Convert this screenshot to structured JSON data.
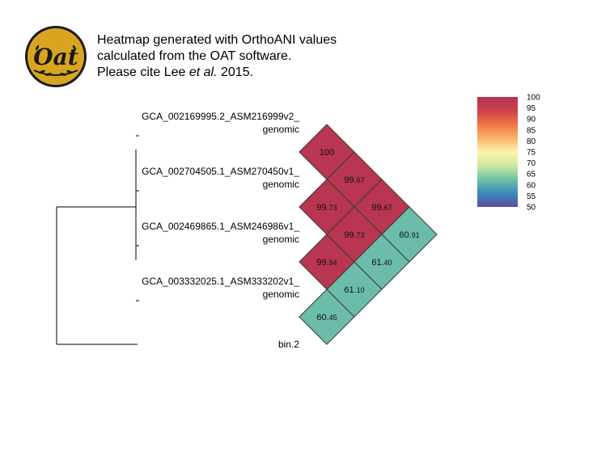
{
  "logo": {
    "text": "Oat",
    "bg": "#d9a521",
    "border": "#1a1a1a"
  },
  "caption": {
    "line1": "Heatmap generated with OrthoANI values",
    "line2": "calculated from the OAT software.",
    "line3_pre": "Please cite Lee ",
    "line3_em": "et al.",
    "line3_post": " 2015."
  },
  "chart_data": {
    "type": "heatmap",
    "title": "",
    "genomes": [
      {
        "line1": "GCA_002169995.2_ASM216999v2_",
        "line2": "genomic"
      },
      {
        "line1": "GCA_002704505.1_ASM270450v1_",
        "line2": "genomic"
      },
      {
        "line1": "GCA_002469865.1_ASM246986v1_",
        "line2": "genomic"
      },
      {
        "line1": "GCA_003332025.1_ASM333202v1_",
        "line2": "genomic"
      },
      {
        "line1": "bin.2",
        "line2": ""
      }
    ],
    "cells": [
      {
        "i": 0,
        "j": 0,
        "value": 100,
        "label": "100"
      },
      {
        "i": 0,
        "j": 1,
        "value": 99.67,
        "label": "99.67"
      },
      {
        "i": 0,
        "j": 2,
        "value": 99.67,
        "label": "99.67"
      },
      {
        "i": 0,
        "j": 3,
        "value": 60.91,
        "label": "60.91"
      },
      {
        "i": 1,
        "j": 2,
        "value": 99.73,
        "label": "99.73"
      },
      {
        "i": 1,
        "j": 3,
        "value": 61.4,
        "label": "61.40"
      },
      {
        "i": 2,
        "j": 3,
        "value": 61.1,
        "label": "61.10"
      },
      {
        "i": 3,
        "j": 3,
        "value": 60.45,
        "label": "60.45"
      },
      {
        "i": 1,
        "j": 1,
        "value": 99.73,
        "label": "99.73"
      },
      {
        "i": 2,
        "j": 2,
        "value": 99.94,
        "label": "99.94"
      }
    ],
    "legend": {
      "ticks": [
        "100",
        "95",
        "90",
        "85",
        "80",
        "75",
        "70",
        "65",
        "60",
        "55",
        "50"
      ],
      "range": [
        50,
        100
      ],
      "placement": "top-right",
      "stops": [
        "#b3344f",
        "#d0404e",
        "#f07545",
        "#fbb466",
        "#fdf3b0",
        "#cfe8a0",
        "#6ec3a4",
        "#3b8bbb",
        "#5c4fa0"
      ]
    },
    "colors": {
      "high": "#b83651",
      "low": "#6bbca9",
      "outline": "#3a3a3a"
    }
  }
}
